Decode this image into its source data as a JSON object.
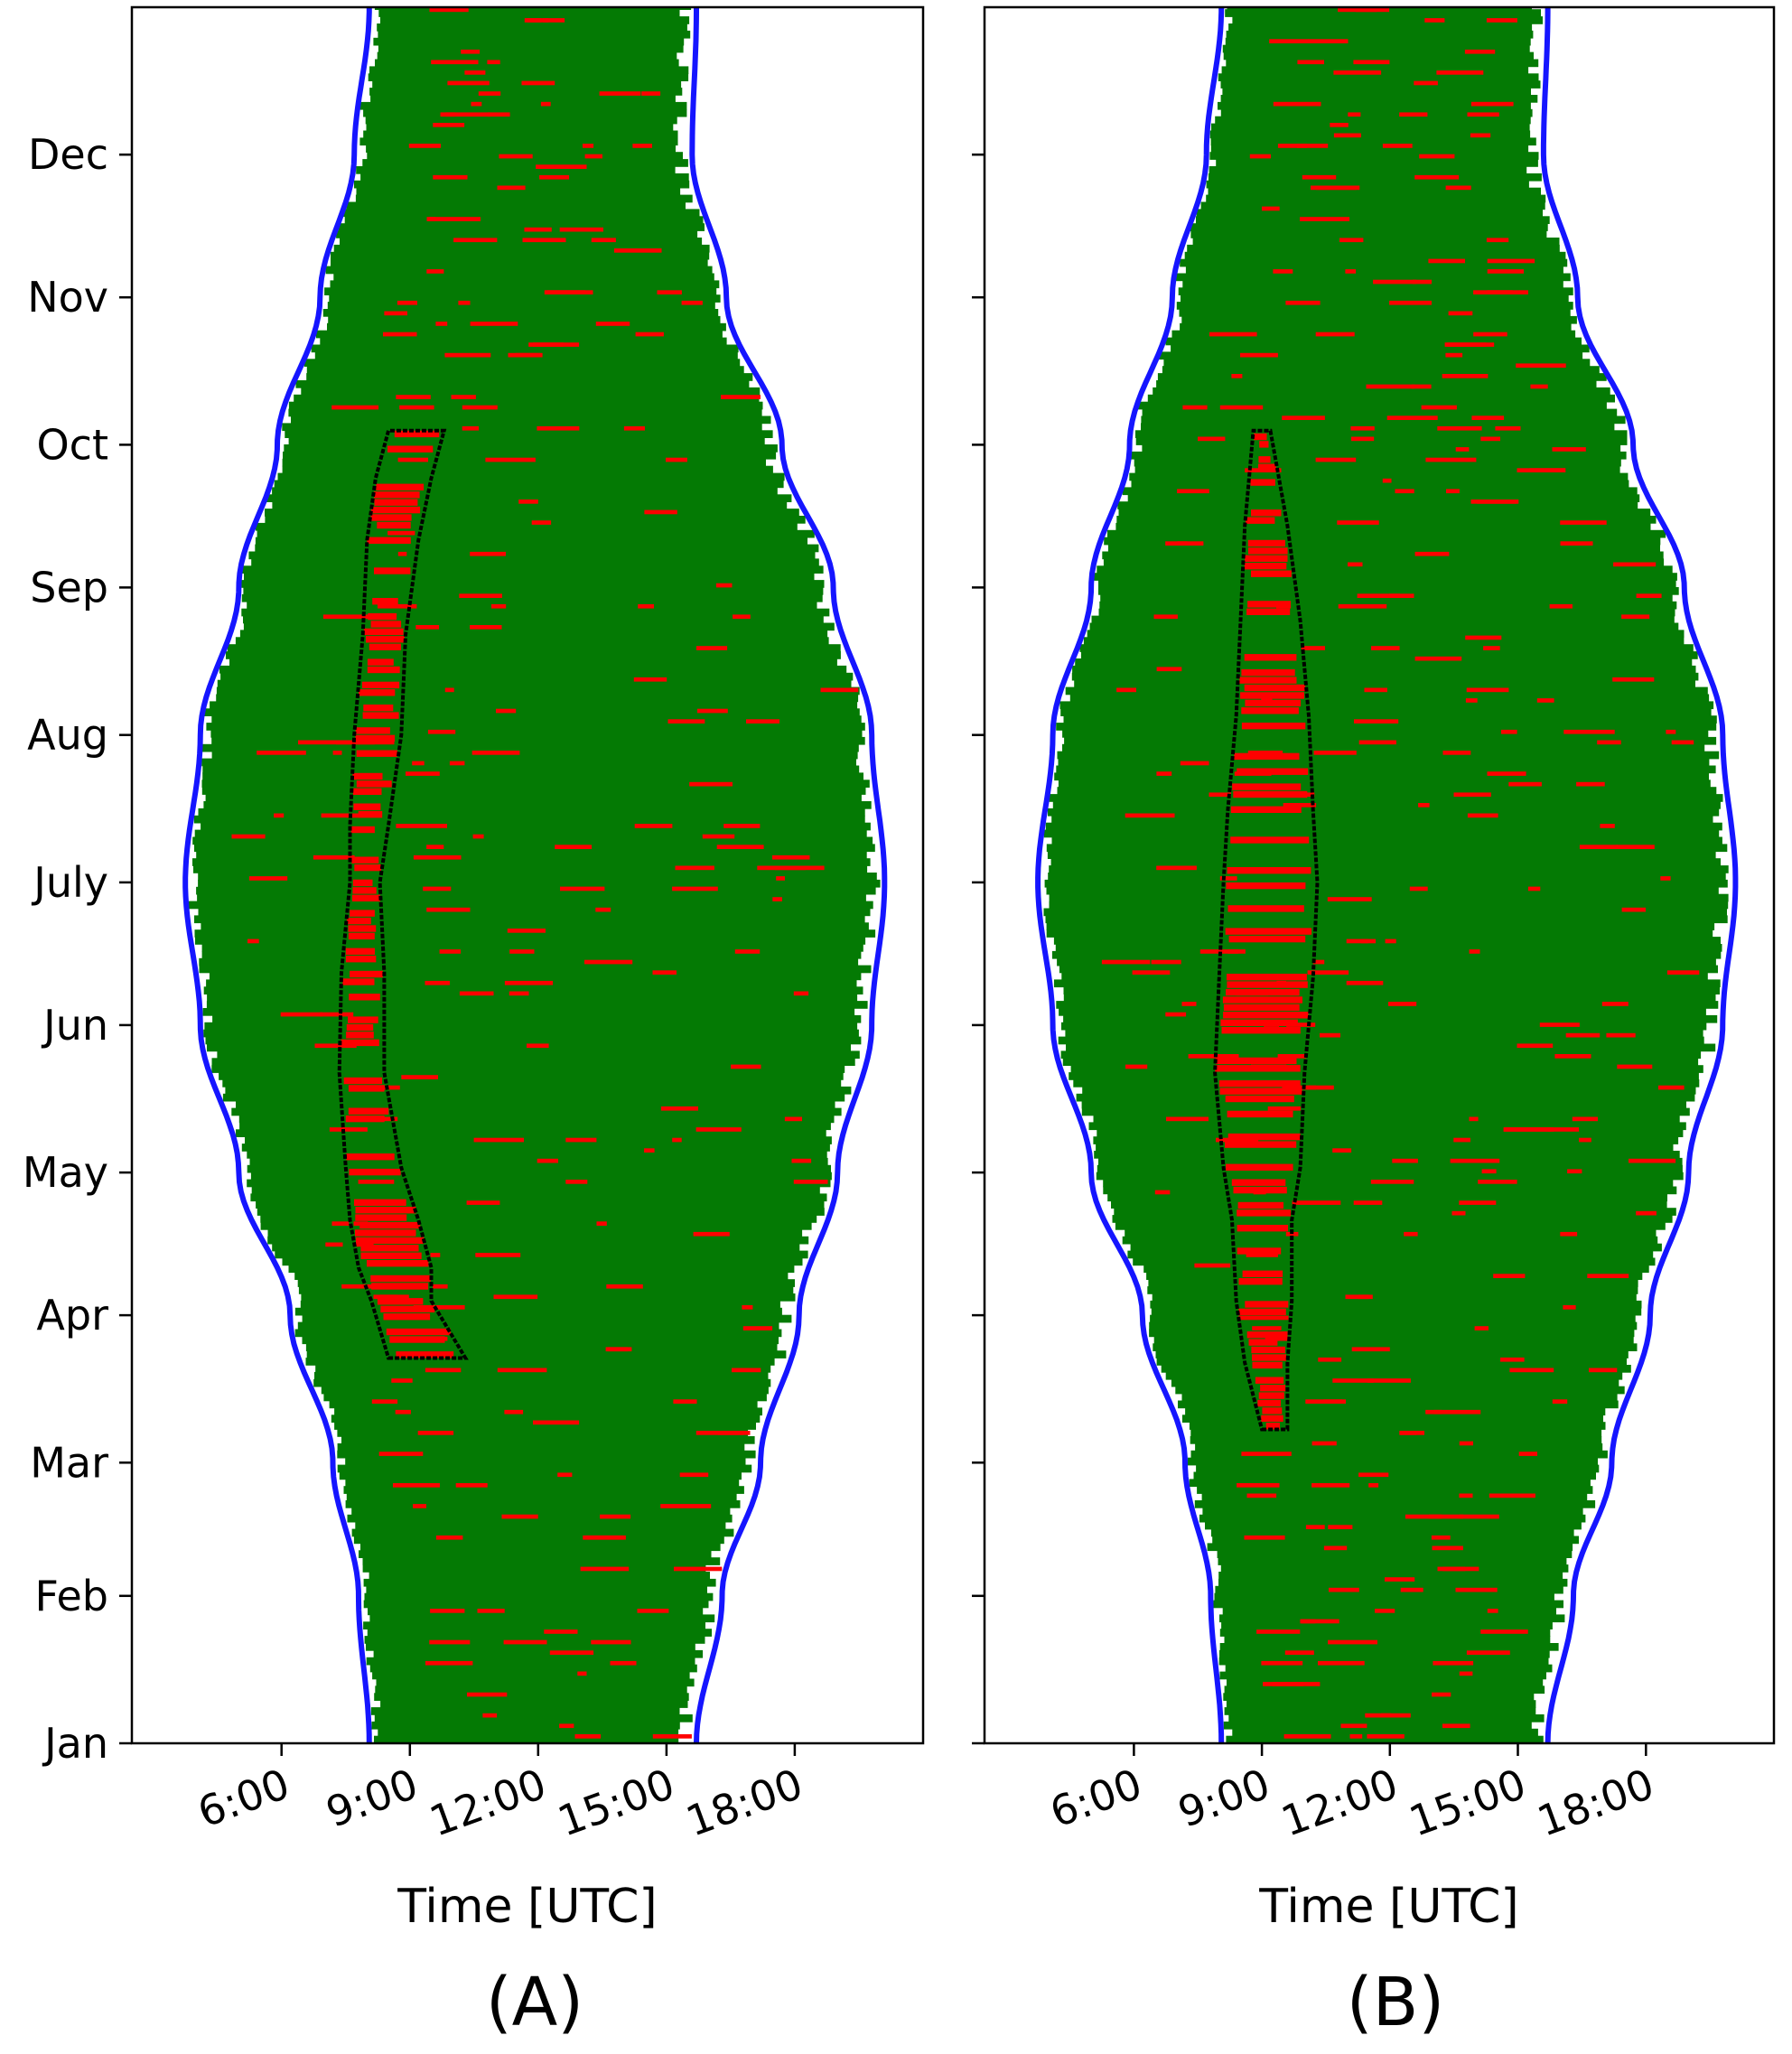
{
  "chart_data": [
    {
      "type": "scatter",
      "panel_label": "(A)",
      "xlabel": "Time [UTC]",
      "ylabel": "",
      "x_tick_labels": [
        "6:00",
        "9:00",
        "12:00",
        "15:00",
        "18:00"
      ],
      "x_tick_values": [
        6,
        9,
        12,
        15,
        18
      ],
      "xlim": [
        2.5,
        21.0
      ],
      "y_tick_labels": [
        "Jan",
        "Feb",
        "Mar",
        "Apr",
        "May",
        "Jun",
        "July",
        "Aug",
        "Sep",
        "Oct",
        "Nov",
        "Dec"
      ],
      "y_tick_values": [
        0,
        31,
        59,
        90,
        120,
        151,
        181,
        212,
        243,
        273,
        304,
        334
      ],
      "ylim": [
        0,
        365
      ],
      "grid": false,
      "daylight_curve": {
        "color": "#1515ff",
        "sunrise_utc_hours": [
          8.05,
          7.8,
          7.2,
          6.2,
          5.0,
          4.1,
          3.75,
          4.1,
          5.0,
          5.9,
          6.9,
          7.7,
          8.05
        ],
        "sunset_utc_hours": [
          15.7,
          16.3,
          17.2,
          18.1,
          19.0,
          19.8,
          20.1,
          19.8,
          18.9,
          17.7,
          16.4,
          15.6,
          15.7
        ],
        "at_day": [
          0,
          31,
          59,
          90,
          120,
          151,
          181,
          212,
          243,
          273,
          304,
          334,
          365
        ]
      },
      "colors": {
        "available": "#047a04",
        "missing": "#ff0000",
        "daylight_curve": "#1515ff",
        "polygon": "#000000"
      },
      "highlight_polygon": {
        "day": [
          81,
          81,
          93,
          100,
          110,
          121,
          141,
          162,
          181,
          193,
          212,
          233,
          253,
          266,
          276,
          276,
          266,
          253,
          233,
          212,
          193,
          181,
          162,
          141,
          121,
          110,
          100,
          93
        ],
        "time_utc": [
          8.5,
          10.3,
          9.5,
          9.5,
          9.2,
          8.8,
          8.4,
          8.4,
          8.3,
          8.5,
          8.8,
          8.9,
          9.2,
          9.5,
          9.8,
          8.5,
          8.2,
          8.0,
          7.9,
          7.7,
          7.6,
          7.6,
          7.4,
          7.35,
          7.5,
          7.6,
          7.8,
          8.1
        ]
      }
    },
    {
      "type": "scatter",
      "panel_label": "(B)",
      "xlabel": "Time [UTC]",
      "ylabel": "",
      "x_tick_labels": [
        "6:00",
        "9:00",
        "12:00",
        "15:00",
        "18:00"
      ],
      "x_tick_values": [
        6,
        9,
        12,
        15,
        18
      ],
      "xlim": [
        2.5,
        21.0
      ],
      "y_tick_labels": [],
      "y_tick_values": [
        0,
        31,
        59,
        90,
        120,
        151,
        181,
        212,
        243,
        273,
        304,
        334
      ],
      "ylim": [
        0,
        365
      ],
      "grid": false,
      "daylight_curve": {
        "color": "#1515ff",
        "sunrise_utc_hours": [
          8.05,
          7.8,
          7.2,
          6.2,
          5.0,
          4.1,
          3.75,
          4.1,
          5.0,
          5.9,
          6.9,
          7.7,
          8.05
        ],
        "sunset_utc_hours": [
          15.7,
          16.3,
          17.2,
          18.1,
          19.0,
          19.8,
          20.1,
          19.8,
          18.9,
          17.7,
          16.4,
          15.6,
          15.7
        ],
        "at_day": [
          0,
          31,
          59,
          90,
          120,
          151,
          181,
          212,
          243,
          273,
          304,
          334,
          365
        ]
      },
      "colors": {
        "available": "#047a04",
        "missing": "#ff0000",
        "daylight_curve": "#1515ff",
        "polygon": "#000000"
      },
      "highlight_polygon": {
        "day": [
          66,
          66,
          80,
          93,
          110,
          121,
          141,
          161,
          181,
          196,
          216,
          236,
          256,
          276,
          276,
          256,
          236,
          216,
          196,
          181,
          161,
          141,
          121,
          110,
          93,
          80
        ],
        "time_utc": [
          9.0,
          9.6,
          9.6,
          9.7,
          9.7,
          9.9,
          10.0,
          10.2,
          10.3,
          10.2,
          10.1,
          9.9,
          9.6,
          9.2,
          8.8,
          8.6,
          8.5,
          8.4,
          8.2,
          8.1,
          8.0,
          7.9,
          8.1,
          8.3,
          8.4,
          8.6
        ]
      }
    }
  ]
}
